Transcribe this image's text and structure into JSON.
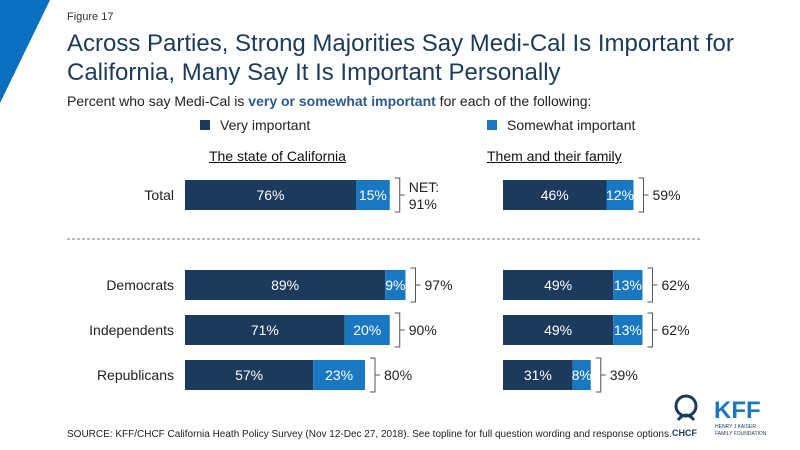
{
  "figure_label": "Figure 17",
  "title": "Across Parties, Strong Majorities Say Medi-Cal Is Important for California, Many Say It Is Important Personally",
  "subtitle": {
    "prefix": "Percent who say Medi-Cal is ",
    "emphasis": "very or somewhat important",
    "suffix": " for each of the following:"
  },
  "colors": {
    "very": "#1b3a5c",
    "somewhat": "#1a78c2",
    "accent": "#0b6fc0",
    "bracket": "#555555"
  },
  "source": "SOURCE: KFF/CHCF California Heath Policy Survey (Nov 12-Dec 27, 2018). See topline for full question wording and response options.",
  "logos": {
    "chcf": "CHCF",
    "kff": "KFF",
    "kff_sub_1": "HENRY J KAISER",
    "kff_sub_2": "FAMILY FOUNDATION"
  },
  "chart_data": {
    "type": "bar",
    "orientation": "horizontal",
    "stacked": true,
    "legend": [
      "Very important",
      "Somewhat important"
    ],
    "categories": [
      "Total",
      "Democrats",
      "Independents",
      "Republicans"
    ],
    "panels": [
      {
        "title": "The state of California",
        "series": [
          {
            "name": "Very important",
            "values": [
              76,
              89,
              71,
              57
            ]
          },
          {
            "name": "Somewhat important",
            "values": [
              15,
              9,
              20,
              23
            ]
          }
        ],
        "net_labels": [
          "NET:\n91%",
          "97%",
          "90%",
          "80%"
        ]
      },
      {
        "title": "Them and their family",
        "series": [
          {
            "name": "Very important",
            "values": [
              46,
              49,
              49,
              31
            ]
          },
          {
            "name": "Somewhat important",
            "values": [
              12,
              13,
              13,
              8
            ]
          }
        ],
        "net_labels": [
          "59%",
          "62%",
          "62%",
          "39%"
        ]
      }
    ],
    "value_suffix": "%"
  }
}
